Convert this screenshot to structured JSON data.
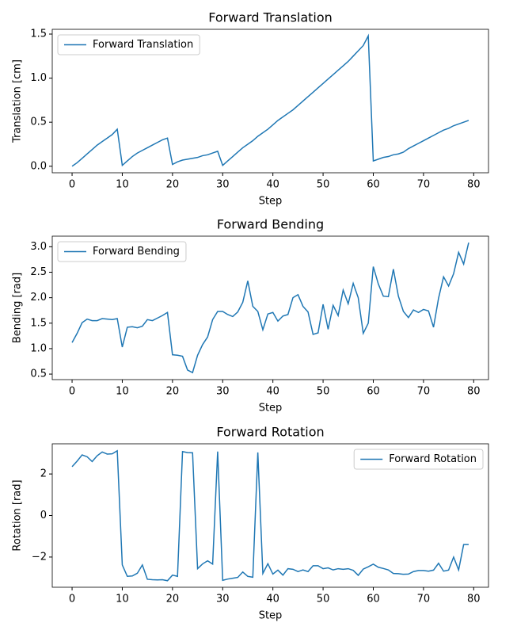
{
  "chart_data": [
    {
      "type": "line",
      "title": "Forward Translation",
      "xlabel": "Step",
      "ylabel": "Translation [cm]",
      "legend": "upper left",
      "x": [
        0,
        1,
        2,
        3,
        4,
        5,
        6,
        7,
        8,
        9,
        10,
        11,
        12,
        13,
        14,
        15,
        16,
        17,
        18,
        19,
        20,
        21,
        22,
        23,
        24,
        25,
        26,
        27,
        28,
        29,
        30,
        31,
        32,
        33,
        34,
        35,
        36,
        37,
        38,
        39,
        40,
        41,
        42,
        43,
        44,
        45,
        46,
        47,
        48,
        49,
        50,
        51,
        52,
        53,
        54,
        55,
        56,
        57,
        58,
        59,
        60,
        61,
        62,
        63,
        64,
        65,
        66,
        67,
        68,
        69,
        70,
        71,
        72,
        73,
        74,
        75,
        76,
        77,
        78,
        79
      ],
      "series": [
        {
          "name": "Forward Translation",
          "color": "#1f77b4",
          "values": [
            0,
            0.04,
            0.09,
            0.14,
            0.19,
            0.24,
            0.28,
            0.32,
            0.36,
            0.42,
            0.01,
            0.06,
            0.11,
            0.15,
            0.18,
            0.21,
            0.24,
            0.27,
            0.3,
            0.32,
            0.02,
            0.05,
            0.07,
            0.08,
            0.09,
            0.1,
            0.12,
            0.13,
            0.15,
            0.17,
            0.01,
            0.06,
            0.11,
            0.16,
            0.21,
            0.25,
            0.29,
            0.34,
            0.38,
            0.42,
            0.47,
            0.52,
            0.56,
            0.6,
            0.64,
            0.69,
            0.74,
            0.79,
            0.84,
            0.89,
            0.94,
            0.99,
            1.04,
            1.09,
            1.14,
            1.19,
            1.25,
            1.31,
            1.37,
            1.48,
            0.06,
            0.08,
            0.1,
            0.11,
            0.13,
            0.14,
            0.16,
            0.2,
            0.23,
            0.26,
            0.29,
            0.32,
            0.35,
            0.38,
            0.41,
            0.43,
            0.46,
            0.48,
            0.5,
            0.52
          ]
        }
      ],
      "xlim": [
        -3.95,
        82.95
      ],
      "ylim": [
        -0.074,
        1.554
      ],
      "xticks": [
        0,
        10,
        20,
        30,
        40,
        50,
        60,
        70,
        80
      ],
      "yticks": [
        {
          "value": 0,
          "label": "0.0"
        },
        0.5,
        {
          "value": 1,
          "label": "1.0"
        },
        1.5
      ]
    },
    {
      "type": "line",
      "title": "Forward Bending",
      "xlabel": "Step",
      "ylabel": "Bending [rad]",
      "legend": "upper left",
      "x": [
        0,
        1,
        2,
        3,
        4,
        5,
        6,
        7,
        8,
        9,
        10,
        11,
        12,
        13,
        14,
        15,
        16,
        17,
        18,
        19,
        20,
        21,
        22,
        23,
        24,
        25,
        26,
        27,
        28,
        29,
        30,
        31,
        32,
        33,
        34,
        35,
        36,
        37,
        38,
        39,
        40,
        41,
        42,
        43,
        44,
        45,
        46,
        47,
        48,
        49,
        50,
        51,
        52,
        53,
        54,
        55,
        56,
        57,
        58,
        59,
        60,
        61,
        62,
        63,
        64,
        65,
        66,
        67,
        68,
        69,
        70,
        71,
        72,
        73,
        74,
        75,
        76,
        77,
        78,
        79
      ],
      "series": [
        {
          "name": "Forward Bending",
          "color": "#1f77b4",
          "values": [
            1.12,
            1.3,
            1.51,
            1.58,
            1.55,
            1.55,
            1.59,
            1.58,
            1.57,
            1.59,
            1.03,
            1.42,
            1.43,
            1.41,
            1.44,
            1.57,
            1.55,
            1.6,
            1.65,
            1.71,
            0.88,
            0.87,
            0.85,
            0.58,
            0.53,
            0.87,
            1.08,
            1.23,
            1.57,
            1.73,
            1.73,
            1.67,
            1.63,
            1.72,
            1.91,
            2.33,
            1.83,
            1.73,
            1.37,
            1.68,
            1.71,
            1.54,
            1.64,
            1.67,
            2.0,
            2.06,
            1.83,
            1.72,
            1.28,
            1.31,
            1.87,
            1.38,
            1.85,
            1.65,
            2.15,
            1.88,
            2.28,
            2.0,
            1.3,
            1.5,
            2.61,
            2.27,
            2.03,
            2.02,
            2.56,
            2.03,
            1.73,
            1.61,
            1.76,
            1.71,
            1.77,
            1.74,
            1.42,
            1.99,
            2.41,
            2.23,
            2.47,
            2.89,
            2.66,
            3.08
          ]
        }
      ],
      "xlim": [
        -3.95,
        82.95
      ],
      "ylim": [
        0.392,
        3.208
      ],
      "xticks": [
        0,
        10,
        20,
        30,
        40,
        50,
        60,
        70,
        80
      ],
      "yticks": [
        0.5,
        {
          "value": 1,
          "label": "1.0"
        },
        1.5,
        {
          "value": 2,
          "label": "2.0"
        },
        2.5,
        {
          "value": 3,
          "label": "3.0"
        }
      ]
    },
    {
      "type": "line",
      "title": "Forward Rotation",
      "xlabel": "Step",
      "ylabel": "Rotation [rad]",
      "legend": "upper right",
      "x": [
        0,
        1,
        2,
        3,
        4,
        5,
        6,
        7,
        8,
        9,
        10,
        11,
        12,
        13,
        14,
        15,
        16,
        17,
        18,
        19,
        20,
        21,
        22,
        23,
        24,
        25,
        26,
        27,
        28,
        29,
        30,
        31,
        32,
        33,
        34,
        35,
        36,
        37,
        38,
        39,
        40,
        41,
        42,
        43,
        44,
        45,
        46,
        47,
        48,
        49,
        50,
        51,
        52,
        53,
        54,
        55,
        56,
        57,
        58,
        59,
        60,
        61,
        62,
        63,
        64,
        65,
        66,
        67,
        68,
        69,
        70,
        71,
        72,
        73,
        74,
        75,
        76,
        77,
        78,
        79
      ],
      "series": [
        {
          "name": "Forward Rotation",
          "color": "#1f77b4",
          "values": [
            2.35,
            2.62,
            2.92,
            2.83,
            2.6,
            2.88,
            3.06,
            2.96,
            2.97,
            3.12,
            -2.38,
            -2.93,
            -2.91,
            -2.78,
            -2.38,
            -3.07,
            -3.09,
            -3.1,
            -3.09,
            -3.14,
            -2.87,
            -2.93,
            3.08,
            3.03,
            3.02,
            -2.56,
            -2.33,
            -2.18,
            -2.34,
            3.08,
            -3.12,
            -3.06,
            -3.02,
            -2.98,
            -2.72,
            -2.93,
            -2.97,
            3.04,
            -2.79,
            -2.32,
            -2.82,
            -2.63,
            -2.87,
            -2.56,
            -2.59,
            -2.7,
            -2.62,
            -2.7,
            -2.42,
            -2.42,
            -2.56,
            -2.52,
            -2.62,
            -2.56,
            -2.59,
            -2.56,
            -2.64,
            -2.88,
            -2.58,
            -2.47,
            -2.34,
            -2.49,
            -2.55,
            -2.62,
            -2.79,
            -2.8,
            -2.83,
            -2.82,
            -2.7,
            -2.65,
            -2.65,
            -2.68,
            -2.63,
            -2.3,
            -2.68,
            -2.63,
            -2.0,
            -2.62,
            -1.4,
            -1.4
          ]
        }
      ],
      "xlim": [
        -3.95,
        82.95
      ],
      "ylim": [
        -3.454,
        3.454
      ],
      "xticks": [
        0,
        10,
        20,
        30,
        40,
        50,
        60,
        70,
        80
      ],
      "yticks": [
        {
          "value": -2,
          "label": "−2"
        },
        0,
        2
      ]
    }
  ]
}
